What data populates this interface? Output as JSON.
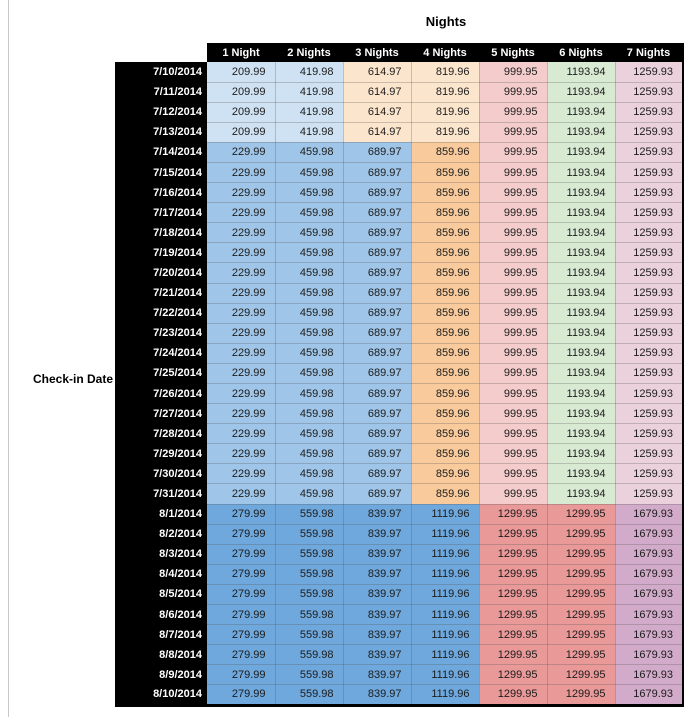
{
  "title": "Nights",
  "row_axis_label": "Check-in Date",
  "table": {
    "columns": [
      "1 Night",
      "2 Nights",
      "3 Nights",
      "4 Nights",
      "5 Nights",
      "6 Nights",
      "7 Nights"
    ],
    "header_bg": "#000000",
    "header_text_color": "#ffffff",
    "band_colors": {
      "early_july": [
        "#CFE2F3",
        "#CFE2F3",
        "#FCE5CD",
        "#FCE5CD",
        "#F4CCCC",
        "#D9EAD3",
        "#EAD1DC"
      ],
      "mid_july": [
        "#9FC5E8",
        "#9FC5E8",
        "#9FC5E8",
        "#F9CB9C",
        "#F4CCCC",
        "#D9EAD3",
        "#EAD1DC"
      ],
      "august": [
        "#6FA8DC",
        "#6FA8DC",
        "#6FA8DC",
        "#6FA8DC",
        "#EA9999",
        "#EA9999",
        "#D2ABCA"
      ]
    },
    "rows": [
      {
        "date": "7/10/2014",
        "band": "early_july",
        "values": [
          "209.99",
          "419.98",
          "614.97",
          "819.96",
          "999.95",
          "1193.94",
          "1259.93"
        ]
      },
      {
        "date": "7/11/2014",
        "band": "early_july",
        "values": [
          "209.99",
          "419.98",
          "614.97",
          "819.96",
          "999.95",
          "1193.94",
          "1259.93"
        ]
      },
      {
        "date": "7/12/2014",
        "band": "early_july",
        "values": [
          "209.99",
          "419.98",
          "614.97",
          "819.96",
          "999.95",
          "1193.94",
          "1259.93"
        ]
      },
      {
        "date": "7/13/2014",
        "band": "early_july",
        "values": [
          "209.99",
          "419.98",
          "614.97",
          "819.96",
          "999.95",
          "1193.94",
          "1259.93"
        ]
      },
      {
        "date": "7/14/2014",
        "band": "mid_july",
        "values": [
          "229.99",
          "459.98",
          "689.97",
          "859.96",
          "999.95",
          "1193.94",
          "1259.93"
        ]
      },
      {
        "date": "7/15/2014",
        "band": "mid_july",
        "values": [
          "229.99",
          "459.98",
          "689.97",
          "859.96",
          "999.95",
          "1193.94",
          "1259.93"
        ]
      },
      {
        "date": "7/16/2014",
        "band": "mid_july",
        "values": [
          "229.99",
          "459.98",
          "689.97",
          "859.96",
          "999.95",
          "1193.94",
          "1259.93"
        ]
      },
      {
        "date": "7/17/2014",
        "band": "mid_july",
        "values": [
          "229.99",
          "459.98",
          "689.97",
          "859.96",
          "999.95",
          "1193.94",
          "1259.93"
        ]
      },
      {
        "date": "7/18/2014",
        "band": "mid_july",
        "values": [
          "229.99",
          "459.98",
          "689.97",
          "859.96",
          "999.95",
          "1193.94",
          "1259.93"
        ]
      },
      {
        "date": "7/19/2014",
        "band": "mid_july",
        "values": [
          "229.99",
          "459.98",
          "689.97",
          "859.96",
          "999.95",
          "1193.94",
          "1259.93"
        ]
      },
      {
        "date": "7/20/2014",
        "band": "mid_july",
        "values": [
          "229.99",
          "459.98",
          "689.97",
          "859.96",
          "999.95",
          "1193.94",
          "1259.93"
        ]
      },
      {
        "date": "7/21/2014",
        "band": "mid_july",
        "values": [
          "229.99",
          "459.98",
          "689.97",
          "859.96",
          "999.95",
          "1193.94",
          "1259.93"
        ]
      },
      {
        "date": "7/22/2014",
        "band": "mid_july",
        "values": [
          "229.99",
          "459.98",
          "689.97",
          "859.96",
          "999.95",
          "1193.94",
          "1259.93"
        ]
      },
      {
        "date": "7/23/2014",
        "band": "mid_july",
        "values": [
          "229.99",
          "459.98",
          "689.97",
          "859.96",
          "999.95",
          "1193.94",
          "1259.93"
        ]
      },
      {
        "date": "7/24/2014",
        "band": "mid_july",
        "values": [
          "229.99",
          "459.98",
          "689.97",
          "859.96",
          "999.95",
          "1193.94",
          "1259.93"
        ]
      },
      {
        "date": "7/25/2014",
        "band": "mid_july",
        "values": [
          "229.99",
          "459.98",
          "689.97",
          "859.96",
          "999.95",
          "1193.94",
          "1259.93"
        ]
      },
      {
        "date": "7/26/2014",
        "band": "mid_july",
        "values": [
          "229.99",
          "459.98",
          "689.97",
          "859.96",
          "999.95",
          "1193.94",
          "1259.93"
        ]
      },
      {
        "date": "7/27/2014",
        "band": "mid_july",
        "values": [
          "229.99",
          "459.98",
          "689.97",
          "859.96",
          "999.95",
          "1193.94",
          "1259.93"
        ]
      },
      {
        "date": "7/28/2014",
        "band": "mid_july",
        "values": [
          "229.99",
          "459.98",
          "689.97",
          "859.96",
          "999.95",
          "1193.94",
          "1259.93"
        ]
      },
      {
        "date": "7/29/2014",
        "band": "mid_july",
        "values": [
          "229.99",
          "459.98",
          "689.97",
          "859.96",
          "999.95",
          "1193.94",
          "1259.93"
        ]
      },
      {
        "date": "7/30/2014",
        "band": "mid_july",
        "values": [
          "229.99",
          "459.98",
          "689.97",
          "859.96",
          "999.95",
          "1193.94",
          "1259.93"
        ]
      },
      {
        "date": "7/31/2014",
        "band": "mid_july",
        "values": [
          "229.99",
          "459.98",
          "689.97",
          "859.96",
          "999.95",
          "1193.94",
          "1259.93"
        ]
      },
      {
        "date": "8/1/2014",
        "band": "august",
        "values": [
          "279.99",
          "559.98",
          "839.97",
          "1119.96",
          "1299.95",
          "1299.95",
          "1679.93"
        ]
      },
      {
        "date": "8/2/2014",
        "band": "august",
        "values": [
          "279.99",
          "559.98",
          "839.97",
          "1119.96",
          "1299.95",
          "1299.95",
          "1679.93"
        ]
      },
      {
        "date": "8/3/2014",
        "band": "august",
        "values": [
          "279.99",
          "559.98",
          "839.97",
          "1119.96",
          "1299.95",
          "1299.95",
          "1679.93"
        ]
      },
      {
        "date": "8/4/2014",
        "band": "august",
        "values": [
          "279.99",
          "559.98",
          "839.97",
          "1119.96",
          "1299.95",
          "1299.95",
          "1679.93"
        ]
      },
      {
        "date": "8/5/2014",
        "band": "august",
        "values": [
          "279.99",
          "559.98",
          "839.97",
          "1119.96",
          "1299.95",
          "1299.95",
          "1679.93"
        ]
      },
      {
        "date": "8/6/2014",
        "band": "august",
        "values": [
          "279.99",
          "559.98",
          "839.97",
          "1119.96",
          "1299.95",
          "1299.95",
          "1679.93"
        ]
      },
      {
        "date": "8/7/2014",
        "band": "august",
        "values": [
          "279.99",
          "559.98",
          "839.97",
          "1119.96",
          "1299.95",
          "1299.95",
          "1679.93"
        ]
      },
      {
        "date": "8/8/2014",
        "band": "august",
        "values": [
          "279.99",
          "559.98",
          "839.97",
          "1119.96",
          "1299.95",
          "1299.95",
          "1679.93"
        ]
      },
      {
        "date": "8/9/2014",
        "band": "august",
        "values": [
          "279.99",
          "559.98",
          "839.97",
          "1119.96",
          "1299.95",
          "1299.95",
          "1679.93"
        ]
      },
      {
        "date": "8/10/2014",
        "band": "august",
        "values": [
          "279.99",
          "559.98",
          "839.97",
          "1119.96",
          "1299.95",
          "1299.95",
          "1679.93"
        ]
      }
    ]
  }
}
